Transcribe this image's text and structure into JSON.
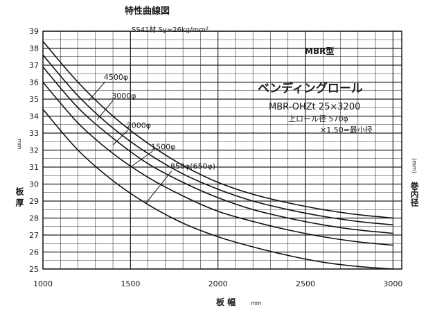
{
  "chart_data": {
    "type": "line",
    "title": "特性曲線図",
    "subtitle": "SS41材 Sy=26kg/mm²",
    "xlabel": "板 幅",
    "xlabel_unit": "mm",
    "ylabel": "板 厚",
    "ylabel_unit": "mm",
    "right_label": "巻内径",
    "right_label_unit": "(mm)",
    "xlim": [
      1000,
      3050
    ],
    "ylim": [
      25,
      39
    ],
    "x_ticks": [
      1000,
      1500,
      2000,
      2500,
      3000
    ],
    "y_ticks": [
      25,
      26,
      27,
      28,
      29,
      30,
      31,
      32,
      33,
      34,
      35,
      36,
      37,
      38,
      39
    ],
    "grid": true,
    "annotations": {
      "model_tag": "MBR型",
      "machine_name": "ベンディングロール",
      "model_number": "MBR-OHZt 25×3200",
      "roll_note_1": "上ロール径 570φ",
      "roll_note_2": "×1.50=最小径"
    },
    "series": [
      {
        "name": "4500φ",
        "x": [
          1000,
          1200,
          1400,
          1600,
          1800,
          2000,
          2200,
          2400,
          2600,
          2800,
          3000
        ],
        "y": [
          38.4,
          36.0,
          34.0,
          32.4,
          31.1,
          30.1,
          29.4,
          28.9,
          28.5,
          28.2,
          28.0
        ]
      },
      {
        "name": "3000φ",
        "x": [
          1000,
          1200,
          1400,
          1600,
          1800,
          2000,
          2200,
          2400,
          2600,
          2800,
          3000
        ],
        "y": [
          37.6,
          35.2,
          33.3,
          31.8,
          30.6,
          29.7,
          29.0,
          28.5,
          28.1,
          27.8,
          27.6
        ]
      },
      {
        "name": "2000φ",
        "x": [
          1000,
          1200,
          1400,
          1600,
          1800,
          2000,
          2200,
          2400,
          2600,
          2800,
          3000
        ],
        "y": [
          36.9,
          34.5,
          32.7,
          31.2,
          30.1,
          29.2,
          28.5,
          28.0,
          27.6,
          27.3,
          27.1
        ]
      },
      {
        "name": "1500φ",
        "x": [
          1000,
          1200,
          1400,
          1600,
          1800,
          2000,
          2200,
          2400,
          2600,
          2800,
          3000
        ],
        "y": [
          36.0,
          33.6,
          31.8,
          30.4,
          29.3,
          28.4,
          27.8,
          27.3,
          26.9,
          26.6,
          26.4
        ]
      },
      {
        "name": "850φ(650φ)",
        "x": [
          1000,
          1200,
          1400,
          1600,
          1800,
          2000,
          2200,
          2400,
          2600,
          2800,
          3000
        ],
        "y": [
          34.4,
          32.0,
          30.2,
          28.8,
          27.7,
          26.9,
          26.3,
          25.8,
          25.4,
          25.15,
          25.0
        ]
      }
    ]
  }
}
